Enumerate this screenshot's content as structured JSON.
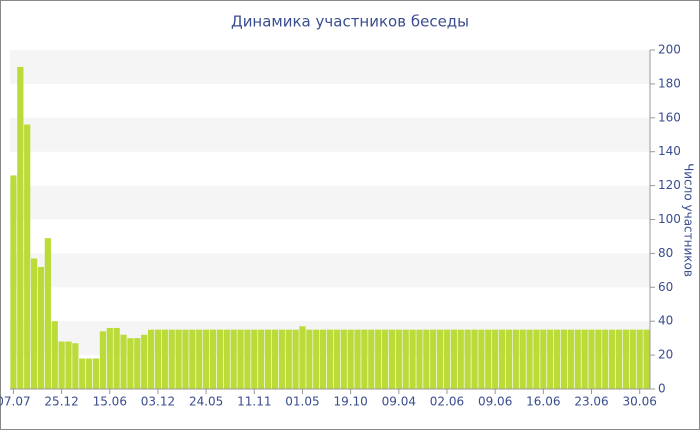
{
  "chart_data": {
    "type": "bar",
    "title": "Динамика участников беседы",
    "y_label": "Число участников",
    "categories": [
      "07.07",
      null,
      null,
      null,
      null,
      null,
      null,
      "25.12",
      null,
      null,
      null,
      null,
      null,
      null,
      "15.06",
      null,
      null,
      null,
      null,
      null,
      null,
      "03.12",
      null,
      null,
      null,
      null,
      null,
      null,
      "24.05",
      null,
      null,
      null,
      null,
      null,
      null,
      "11.11",
      null,
      null,
      null,
      null,
      null,
      null,
      "01.05",
      null,
      null,
      null,
      null,
      null,
      null,
      "19.10",
      null,
      null,
      null,
      null,
      null,
      null,
      "09.04",
      null,
      null,
      null,
      null,
      null,
      null,
      "02.06",
      null,
      null,
      null,
      null,
      null,
      null,
      "09.06",
      null,
      null,
      null,
      null,
      null,
      null,
      "16.06",
      null,
      null,
      null,
      null,
      null,
      null,
      "23.06",
      null,
      null,
      null,
      null,
      null,
      null,
      "30.06",
      null
    ],
    "values": [
      126,
      190,
      156,
      77,
      72,
      89,
      40,
      28,
      28,
      27,
      18,
      18,
      18,
      34,
      36,
      36,
      32,
      30,
      30,
      32,
      35,
      35,
      35,
      35,
      35,
      35,
      35,
      35,
      35,
      35,
      35,
      35,
      35,
      35,
      35,
      35,
      35,
      35,
      35,
      35,
      35,
      35,
      37,
      35,
      35,
      35,
      35,
      35,
      35,
      35,
      35,
      35,
      35,
      35,
      35,
      35,
      35,
      35,
      35,
      35,
      35,
      35,
      35,
      35,
      35,
      35,
      35,
      35,
      35,
      35,
      35,
      35,
      35,
      35,
      35,
      35,
      35,
      35,
      35,
      35,
      35,
      35,
      35,
      35,
      35,
      35,
      35,
      35,
      35,
      35,
      35,
      35,
      35
    ],
    "color": "#badb38",
    "ylim": [
      0,
      200
    ],
    "yticks": [
      0,
      20,
      40,
      60,
      80,
      100,
      120,
      140,
      160,
      180,
      200
    ],
    "grid": true,
    "y_axis_side": "right"
  }
}
